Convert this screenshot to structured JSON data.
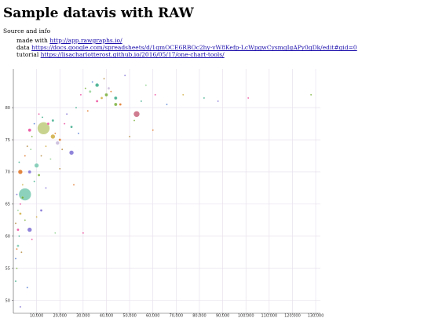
{
  "page": {
    "title": "Sample datavis with RAW",
    "subtitle": "Source and info",
    "links": [
      {
        "prefix": "made with ",
        "text": "http://app.rawgraphs.io/"
      },
      {
        "prefix": "data ",
        "text": "https://docs.google.com/spreadsheets/d/1qmOCE6RBOc2hy-vW8Kefp-LcWpgwCysmgIgAPy0gDk/edit#gid=0"
      },
      {
        "prefix": "tutorial ",
        "text": "https://lisacharlotterost.github.io/2016/05/17/one-chart-tools/"
      }
    ]
  },
  "chart_data": {
    "type": "scatter",
    "xlim": [
      0,
      132000
    ],
    "ylim": [
      48,
      86
    ],
    "x_ticks": [
      10000,
      20000,
      30000,
      40000,
      50000,
      60000,
      70000,
      80000,
      90000,
      100000,
      110000,
      120000,
      130000
    ],
    "x_tick_labels": [
      "10,000",
      "20,000",
      "30,000",
      "40,000",
      "50,000",
      "60,000",
      "70,000",
      "80,000",
      "90,000",
      "100,000",
      "110,000",
      "120,000",
      "130,000"
    ],
    "y_ticks": [
      50,
      55,
      60,
      65,
      70,
      75,
      80
    ],
    "y_tick_labels": [
      "50",
      "55",
      "60",
      "65",
      "70",
      "75",
      "80"
    ],
    "grid": true,
    "palette": [
      "#7fc97f",
      "#beaed4",
      "#6a5acd",
      "#e7298a",
      "#c9a227",
      "#1b9e77",
      "#d95f02",
      "#66a61e",
      "#a6761d",
      "#3366cc"
    ],
    "points": [
      {
        "x": 13000,
        "y": 76.8,
        "r": 8,
        "color": "#b5c46a"
      },
      {
        "x": 5000,
        "y": 66.5,
        "r": 8,
        "color": "#66c2a5"
      },
      {
        "x": 53000,
        "y": 79,
        "r": 4,
        "color": "#c0506b"
      },
      {
        "x": 10000,
        "y": 71,
        "r": 3,
        "color": "#66c2a5"
      },
      {
        "x": 17000,
        "y": 75.5,
        "r": 3,
        "color": "#c9a227"
      },
      {
        "x": 25000,
        "y": 73,
        "r": 3,
        "color": "#6a5acd"
      },
      {
        "x": 3000,
        "y": 70,
        "r": 3,
        "color": "#d95f02"
      },
      {
        "x": 7000,
        "y": 61,
        "r": 3,
        "color": "#6a5acd"
      },
      {
        "x": 36000,
        "y": 83.5,
        "r": 2.5,
        "color": "#1b9e77"
      },
      {
        "x": 19000,
        "y": 74.5,
        "r": 2.5,
        "color": "#beaed4"
      },
      {
        "x": 7000,
        "y": 76.5,
        "r": 2,
        "color": "#e7298a"
      },
      {
        "x": 7000,
        "y": 70,
        "r": 2,
        "color": "#6a5acd"
      },
      {
        "x": 40000,
        "y": 82,
        "r": 2,
        "color": "#66a61e"
      },
      {
        "x": 44000,
        "y": 81.5,
        "r": 2,
        "color": "#1b9e77"
      },
      {
        "x": 44000,
        "y": 80.5,
        "r": 2,
        "color": "#66a61e"
      },
      {
        "x": 17000,
        "y": 78,
        "r": 1.5,
        "color": "#1b9e77"
      },
      {
        "x": 38000,
        "y": 81.5,
        "r": 1.5,
        "color": "#c9a227"
      },
      {
        "x": 33000,
        "y": 82.5,
        "r": 1.5,
        "color": "#7fc97f"
      },
      {
        "x": 46000,
        "y": 80.5,
        "r": 1.5,
        "color": "#d95f02"
      },
      {
        "x": 12000,
        "y": 64,
        "r": 1.5,
        "color": "#6a5acd"
      },
      {
        "x": 11000,
        "y": 69.5,
        "r": 1.5,
        "color": "#66a61e"
      },
      {
        "x": 41000,
        "y": 83,
        "r": 1.5,
        "color": "#beaed4"
      },
      {
        "x": 2000,
        "y": 61,
        "r": 1.5,
        "color": "#e7298a"
      },
      {
        "x": 3000,
        "y": 63.5,
        "r": 1.5,
        "color": "#c9a227"
      },
      {
        "x": 4000,
        "y": 66,
        "r": 1.5,
        "color": "#66a61e"
      },
      {
        "x": 2000,
        "y": 58.5,
        "r": 1.5,
        "color": "#66c2a5"
      },
      {
        "x": 25000,
        "y": 77,
        "r": 1.5,
        "color": "#1b9e77"
      },
      {
        "x": 20000,
        "y": 75,
        "r": 1.5,
        "color": "#d95f02"
      },
      {
        "x": 15000,
        "y": 77.5,
        "r": 1.5,
        "color": "#e7298a"
      },
      {
        "x": 36000,
        "y": 81,
        "r": 1.5,
        "color": "#e7298a"
      },
      {
        "x": 1000,
        "y": 56.5,
        "r": 1,
        "color": "#3366cc"
      },
      {
        "x": 1500,
        "y": 55,
        "r": 1,
        "color": "#66a61e"
      },
      {
        "x": 1500,
        "y": 58,
        "r": 1,
        "color": "#d95f02"
      },
      {
        "x": 2500,
        "y": 60,
        "r": 1,
        "color": "#1b9e77"
      },
      {
        "x": 1000,
        "y": 62,
        "r": 1,
        "color": "#a6761d"
      },
      {
        "x": 2000,
        "y": 64,
        "r": 1,
        "color": "#7fc97f"
      },
      {
        "x": 3000,
        "y": 65,
        "r": 1,
        "color": "#e7298a"
      },
      {
        "x": 1500,
        "y": 66.5,
        "r": 1,
        "color": "#6a5acd"
      },
      {
        "x": 4000,
        "y": 68,
        "r": 1,
        "color": "#c9a227"
      },
      {
        "x": 2500,
        "y": 71.5,
        "r": 1,
        "color": "#1b9e77"
      },
      {
        "x": 5000,
        "y": 72.5,
        "r": 1,
        "color": "#d95f02"
      },
      {
        "x": 6000,
        "y": 74,
        "r": 1,
        "color": "#a6761d"
      },
      {
        "x": 8000,
        "y": 75.5,
        "r": 1,
        "color": "#66a61e"
      },
      {
        "x": 9000,
        "y": 77.5,
        "r": 1,
        "color": "#3366cc"
      },
      {
        "x": 11000,
        "y": 79,
        "r": 1,
        "color": "#e7298a"
      },
      {
        "x": 12500,
        "y": 78.5,
        "r": 1,
        "color": "#1b9e77"
      },
      {
        "x": 14000,
        "y": 74,
        "r": 1,
        "color": "#c9a227"
      },
      {
        "x": 16000,
        "y": 72,
        "r": 1,
        "color": "#7fc97f"
      },
      {
        "x": 18000,
        "y": 76,
        "r": 1,
        "color": "#d95f02"
      },
      {
        "x": 21000,
        "y": 73.5,
        "r": 1,
        "color": "#a6761d"
      },
      {
        "x": 23000,
        "y": 79,
        "r": 1,
        "color": "#6a5acd"
      },
      {
        "x": 27000,
        "y": 80,
        "r": 1,
        "color": "#1b9e77"
      },
      {
        "x": 29000,
        "y": 82,
        "r": 1,
        "color": "#e7298a"
      },
      {
        "x": 31000,
        "y": 83,
        "r": 1,
        "color": "#66a61e"
      },
      {
        "x": 34000,
        "y": 84,
        "r": 1,
        "color": "#3366cc"
      },
      {
        "x": 39000,
        "y": 84.5,
        "r": 1,
        "color": "#a6761d"
      },
      {
        "x": 42000,
        "y": 82.5,
        "r": 1,
        "color": "#d95f02"
      },
      {
        "x": 48000,
        "y": 85,
        "r": 1,
        "color": "#6a5acd"
      },
      {
        "x": 55000,
        "y": 81,
        "r": 1,
        "color": "#1b9e77"
      },
      {
        "x": 57000,
        "y": 83.5,
        "r": 1,
        "color": "#7fc97f"
      },
      {
        "x": 61000,
        "y": 82,
        "r": 1,
        "color": "#e7298a"
      },
      {
        "x": 52000,
        "y": 78,
        "r": 1,
        "color": "#66a61e"
      },
      {
        "x": 50000,
        "y": 75.5,
        "r": 1,
        "color": "#a6761d"
      },
      {
        "x": 60000,
        "y": 76.5,
        "r": 1,
        "color": "#d95f02"
      },
      {
        "x": 66000,
        "y": 80.5,
        "r": 1,
        "color": "#3366cc"
      },
      {
        "x": 73000,
        "y": 82,
        "r": 1,
        "color": "#c9a227"
      },
      {
        "x": 82000,
        "y": 81.5,
        "r": 1,
        "color": "#1b9e77"
      },
      {
        "x": 88000,
        "y": 81,
        "r": 1,
        "color": "#6a5acd"
      },
      {
        "x": 101000,
        "y": 81.5,
        "r": 1,
        "color": "#e7298a"
      },
      {
        "x": 128000,
        "y": 82,
        "r": 1,
        "color": "#66a61e"
      },
      {
        "x": 26000,
        "y": 68,
        "r": 1,
        "color": "#d95f02"
      },
      {
        "x": 20000,
        "y": 70.5,
        "r": 1,
        "color": "#a6761d"
      },
      {
        "x": 8000,
        "y": 59.5,
        "r": 1,
        "color": "#e7298a"
      },
      {
        "x": 18000,
        "y": 60.5,
        "r": 1,
        "color": "#7fc97f"
      },
      {
        "x": 6000,
        "y": 52,
        "r": 1,
        "color": "#3366cc"
      },
      {
        "x": 9000,
        "y": 68.5,
        "r": 1,
        "color": "#1b9e77"
      },
      {
        "x": 10000,
        "y": 63,
        "r": 1,
        "color": "#c9a227"
      },
      {
        "x": 14000,
        "y": 67.5,
        "r": 1,
        "color": "#6a5acd"
      },
      {
        "x": 5000,
        "y": 62.5,
        "r": 1,
        "color": "#66a61e"
      },
      {
        "x": 3500,
        "y": 57.5,
        "r": 1,
        "color": "#a6761d"
      },
      {
        "x": 22000,
        "y": 77.5,
        "r": 1,
        "color": "#e7298a"
      },
      {
        "x": 28000,
        "y": 76,
        "r": 1,
        "color": "#3366cc"
      },
      {
        "x": 32000,
        "y": 79.5,
        "r": 1,
        "color": "#d95f02"
      },
      {
        "x": 1000,
        "y": 53,
        "r": 1,
        "color": "#1b9e77"
      },
      {
        "x": 7500,
        "y": 73.5,
        "r": 1,
        "color": "#7fc97f"
      },
      {
        "x": 12000,
        "y": 72.5,
        "r": 1,
        "color": "#a6761d"
      },
      {
        "x": 30000,
        "y": 60.5,
        "r": 1,
        "color": "#e7298a"
      },
      {
        "x": 3000,
        "y": 49,
        "r": 1,
        "color": "#6a5acd"
      }
    ]
  }
}
